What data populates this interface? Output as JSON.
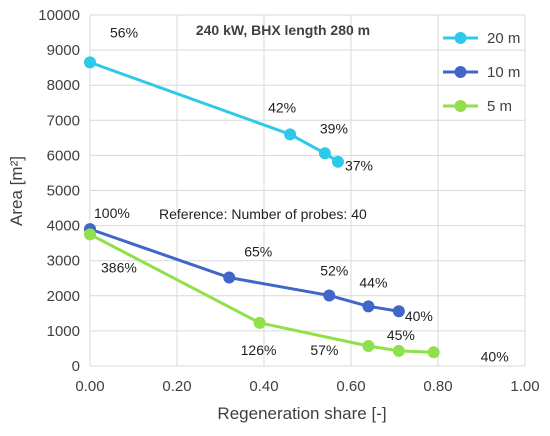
{
  "chart_data": {
    "type": "line",
    "title": "240 kW, BHX length 280 m",
    "xlabel": "Regeneration share [-]",
    "ylabel": "Area [m²]",
    "xlim": [
      0,
      1
    ],
    "ylim": [
      0,
      10000
    ],
    "x_ticks": [
      "0.00",
      "0.20",
      "0.40",
      "0.60",
      "0.80",
      "1.00"
    ],
    "y_ticks": [
      "0",
      "1000",
      "2000",
      "3000",
      "4000",
      "5000",
      "6000",
      "7000",
      "8000",
      "9000",
      "10000"
    ],
    "grid": true,
    "legend_position": "top-right",
    "annotation": "Reference: Number of probes: 40",
    "series": [
      {
        "name": "20 m",
        "color": "#2ec9e8",
        "points": [
          {
            "x": 0.0,
            "y": 8650,
            "label": "56%"
          },
          {
            "x": 0.46,
            "y": 6600,
            "label": "42%"
          },
          {
            "x": 0.54,
            "y": 6060,
            "label": "39%"
          },
          {
            "x": 0.57,
            "y": 5820,
            "label": "37%"
          }
        ]
      },
      {
        "name": "10 m",
        "color": "#4066c8",
        "points": [
          {
            "x": 0.0,
            "y": 3900,
            "label": "100%"
          },
          {
            "x": 0.32,
            "y": 2520,
            "label": "65%"
          },
          {
            "x": 0.55,
            "y": 2010,
            "label": "52%"
          },
          {
            "x": 0.64,
            "y": 1700,
            "label": "44%"
          },
          {
            "x": 0.71,
            "y": 1560,
            "label": "40%"
          }
        ]
      },
      {
        "name": "5 m",
        "color": "#8fe04a",
        "points": [
          {
            "x": 0.0,
            "y": 3750,
            "label": "386%"
          },
          {
            "x": 0.39,
            "y": 1230,
            "label": "126%"
          },
          {
            "x": 0.64,
            "y": 570,
            "label": "57%"
          },
          {
            "x": 0.71,
            "y": 430,
            "label": "45%"
          },
          {
            "x": 0.79,
            "y": 390,
            "label": "40%"
          }
        ]
      }
    ]
  }
}
